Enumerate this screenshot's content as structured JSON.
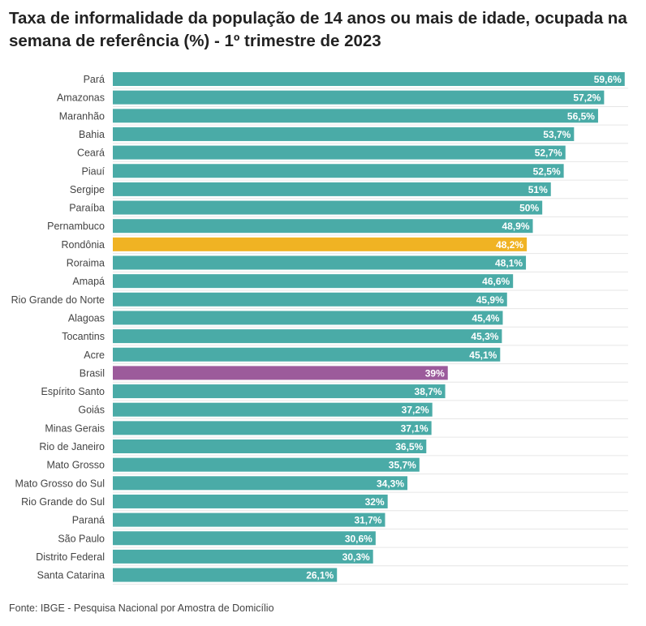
{
  "chart_data": {
    "type": "bar",
    "orientation": "horizontal",
    "title": "Taxa de informalidade da população de 14 anos ou mais de idade, ocupada na semana de referência (%) - 1º trimestre de 2023",
    "source": "Fonte: IBGE - Pesquisa Nacional por Amostra de Domicílio",
    "xlim": [
      0,
      60
    ],
    "grid": true,
    "colors": {
      "default": "#4aaba7",
      "highlight": "#f0b323",
      "national": "#9c5b9b"
    },
    "bars": [
      {
        "category": "Pará",
        "value": 59.6,
        "label": "59,6%",
        "color": "default"
      },
      {
        "category": "Amazonas",
        "value": 57.2,
        "label": "57,2%",
        "color": "default"
      },
      {
        "category": "Maranhão",
        "value": 56.5,
        "label": "56,5%",
        "color": "default"
      },
      {
        "category": "Bahia",
        "value": 53.7,
        "label": "53,7%",
        "color": "default"
      },
      {
        "category": "Ceará",
        "value": 52.7,
        "label": "52,7%",
        "color": "default"
      },
      {
        "category": "Piauí",
        "value": 52.5,
        "label": "52,5%",
        "color": "default"
      },
      {
        "category": "Sergipe",
        "value": 51,
        "label": "51%",
        "color": "default"
      },
      {
        "category": "Paraíba",
        "value": 50,
        "label": "50%",
        "color": "default"
      },
      {
        "category": "Pernambuco",
        "value": 48.9,
        "label": "48,9%",
        "color": "default"
      },
      {
        "category": "Rondônia",
        "value": 48.2,
        "label": "48,2%",
        "color": "highlight"
      },
      {
        "category": "Roraima",
        "value": 48.1,
        "label": "48,1%",
        "color": "default"
      },
      {
        "category": "Amapá",
        "value": 46.6,
        "label": "46,6%",
        "color": "default"
      },
      {
        "category": "Rio Grande do Norte",
        "value": 45.9,
        "label": "45,9%",
        "color": "default"
      },
      {
        "category": "Alagoas",
        "value": 45.4,
        "label": "45,4%",
        "color": "default"
      },
      {
        "category": "Tocantins",
        "value": 45.3,
        "label": "45,3%",
        "color": "default"
      },
      {
        "category": "Acre",
        "value": 45.1,
        "label": "45,1%",
        "color": "default"
      },
      {
        "category": "Brasil",
        "value": 39,
        "label": "39%",
        "color": "national"
      },
      {
        "category": "Espírito Santo",
        "value": 38.7,
        "label": "38,7%",
        "color": "default"
      },
      {
        "category": "Goiás",
        "value": 37.2,
        "label": "37,2%",
        "color": "default"
      },
      {
        "category": "Minas Gerais",
        "value": 37.1,
        "label": "37,1%",
        "color": "default"
      },
      {
        "category": "Rio de Janeiro",
        "value": 36.5,
        "label": "36,5%",
        "color": "default"
      },
      {
        "category": "Mato Grosso",
        "value": 35.7,
        "label": "35,7%",
        "color": "default"
      },
      {
        "category": "Mato Grosso do Sul",
        "value": 34.3,
        "label": "34,3%",
        "color": "default"
      },
      {
        "category": "Rio Grande do Sul",
        "value": 32,
        "label": "32%",
        "color": "default"
      },
      {
        "category": "Paraná",
        "value": 31.7,
        "label": "31,7%",
        "color": "default"
      },
      {
        "category": "São Paulo",
        "value": 30.6,
        "label": "30,6%",
        "color": "default"
      },
      {
        "category": "Distrito Federal",
        "value": 30.3,
        "label": "30,3%",
        "color": "default"
      },
      {
        "category": "Santa Catarina",
        "value": 26.1,
        "label": "26,1%",
        "color": "default"
      }
    ]
  }
}
